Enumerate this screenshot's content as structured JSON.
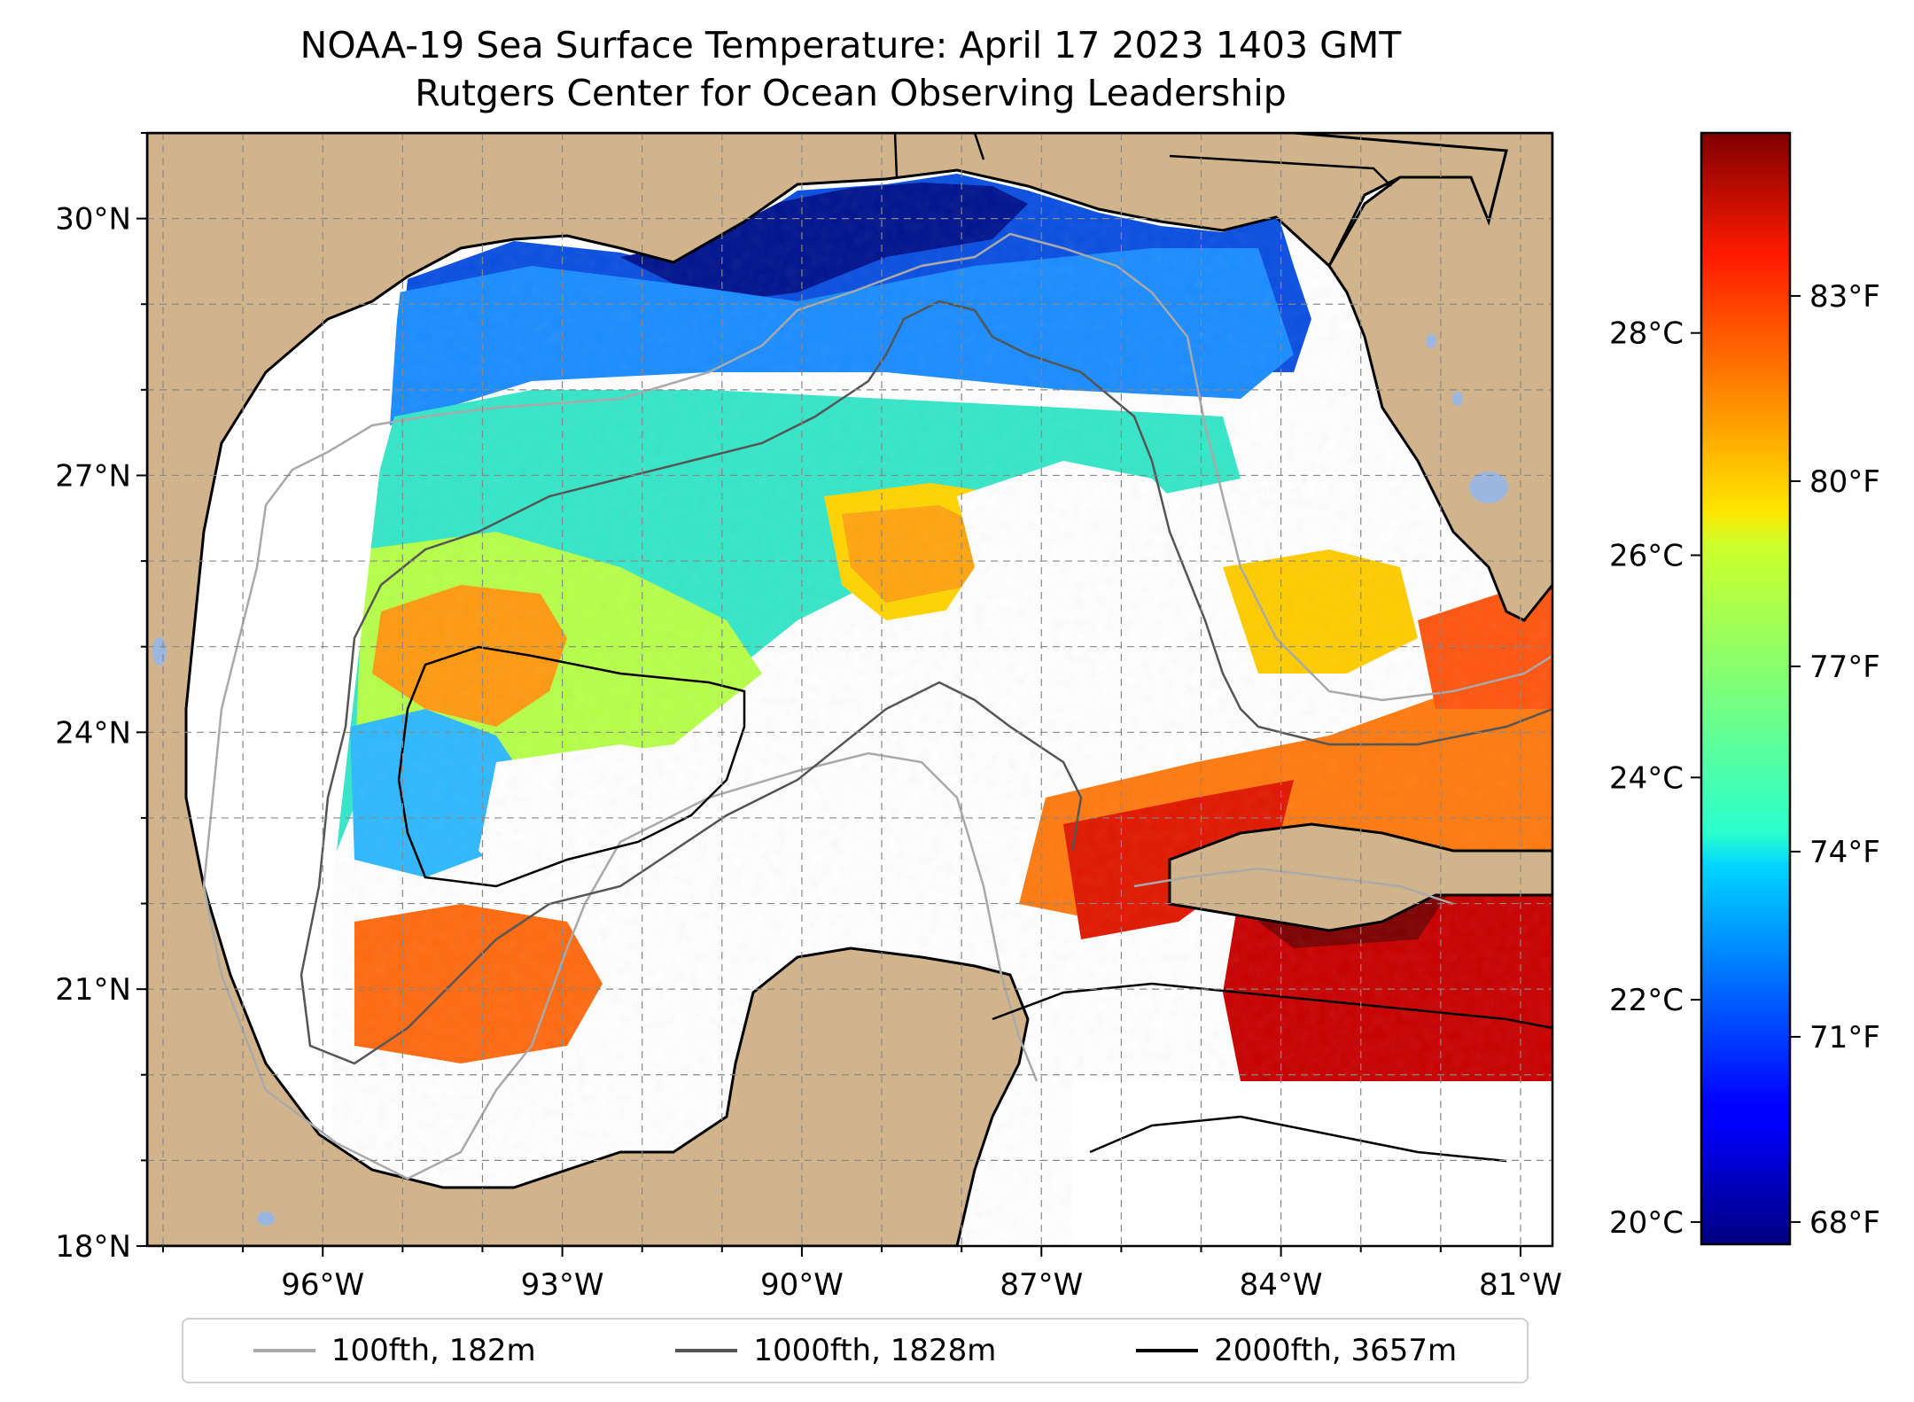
{
  "title": {
    "line1": "NOAA-19 Sea Surface Temperature: April 17 2023 1403 GMT",
    "line2": "Rutgers Center for Ocean Observing Leadership"
  },
  "map": {
    "lon_range": [
      -98.2,
      -80.6
    ],
    "lat_range": [
      18.0,
      31.0
    ],
    "lon_ticks": [
      {
        "value": -96,
        "label": "96°W"
      },
      {
        "value": -93,
        "label": "93°W"
      },
      {
        "value": -90,
        "label": "90°W"
      },
      {
        "value": -87,
        "label": "87°W"
      },
      {
        "value": -84,
        "label": "84°W"
      },
      {
        "value": -81,
        "label": "81°W"
      }
    ],
    "lat_ticks": [
      {
        "value": 18,
        "label": "18°N"
      },
      {
        "value": 21,
        "label": "21°N"
      },
      {
        "value": 24,
        "label": "24°N"
      },
      {
        "value": 27,
        "label": "27°N"
      },
      {
        "value": 30,
        "label": "30°N"
      }
    ],
    "grid": true,
    "land_color": "#d2b48c",
    "lake_color": "#9bb7e0"
  },
  "colorbar": {
    "range_c": [
      19.8,
      29.8
    ],
    "celsius_ticks": [
      {
        "value": 20,
        "label": "20°C"
      },
      {
        "value": 22,
        "label": "22°C"
      },
      {
        "value": 24,
        "label": "24°C"
      },
      {
        "value": 26,
        "label": "26°C"
      },
      {
        "value": 28,
        "label": "28°C"
      }
    ],
    "fahrenheit_ticks": [
      {
        "value": 68,
        "label": "68°F"
      },
      {
        "value": 71,
        "label": "71°F"
      },
      {
        "value": 74,
        "label": "74°F"
      },
      {
        "value": 77,
        "label": "77°F"
      },
      {
        "value": 80,
        "label": "80°F"
      },
      {
        "value": 83,
        "label": "83°F"
      }
    ],
    "colormap": "jet"
  },
  "legend": {
    "placement": "bottom",
    "items": [
      {
        "label": "100fth, 182m",
        "color": "#a9a9a9"
      },
      {
        "label": "1000fth, 1828m",
        "color": "#555555"
      },
      {
        "label": "2000fth, 3657m",
        "color": "#000000"
      }
    ]
  }
}
